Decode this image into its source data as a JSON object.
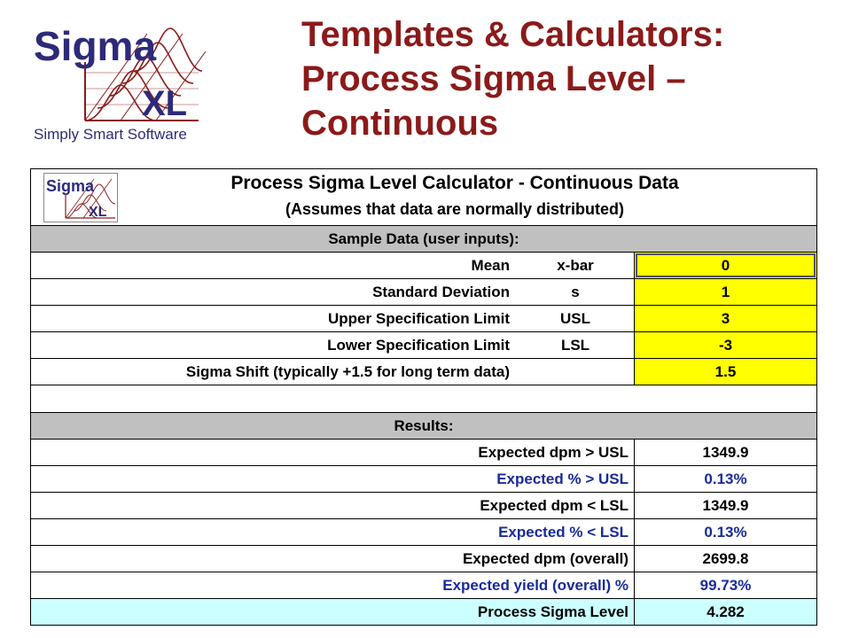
{
  "slide": {
    "logo_word": "Sigma",
    "logo_xl": "XL",
    "logo_tagline": "Simply Smart Software",
    "title_lines": [
      "Templates & Calculators:",
      "Process Sigma Level –",
      "Continuous"
    ]
  },
  "calculator": {
    "mini_logo_word": "Sigma",
    "mini_logo_xl": "XL",
    "title": "Process Sigma Level Calculator - Continuous Data",
    "subtitle": "(Assumes that data are normally distributed)",
    "inputs_header": "Sample Data (user inputs):",
    "inputs": [
      {
        "label": "Mean",
        "symbol": "x-bar",
        "value": "0"
      },
      {
        "label": "Standard Deviation",
        "symbol": "s",
        "value": "1"
      },
      {
        "label": "Upper Specification Limit",
        "symbol": "USL",
        "value": "3"
      },
      {
        "label": "Lower Specification Limit",
        "symbol": "LSL",
        "value": "-3"
      },
      {
        "label": "Sigma Shift (typically +1.5 for long term data)",
        "symbol": "",
        "value": "1.5"
      }
    ],
    "results_header": "Results:",
    "results": [
      {
        "label": "Expected dpm > USL",
        "value": "1349.9"
      },
      {
        "label": "Expected % > USL",
        "value": "0.13%"
      },
      {
        "label": "Expected dpm < LSL",
        "value": "1349.9"
      },
      {
        "label": "Expected % < LSL",
        "value": "0.13%"
      },
      {
        "label": "Expected dpm (overall)",
        "value": "2699.8"
      },
      {
        "label": "Expected yield (overall) %",
        "value": "99.73%"
      },
      {
        "label": "Process Sigma Level",
        "value": "4.282"
      }
    ]
  },
  "colors": {
    "title": "#8b1a1a",
    "input_fill": "#ffff00",
    "section_fill": "#c0c0c0",
    "percent_text": "#1a2a9a",
    "sigma_level_fill": "#ccffff"
  }
}
